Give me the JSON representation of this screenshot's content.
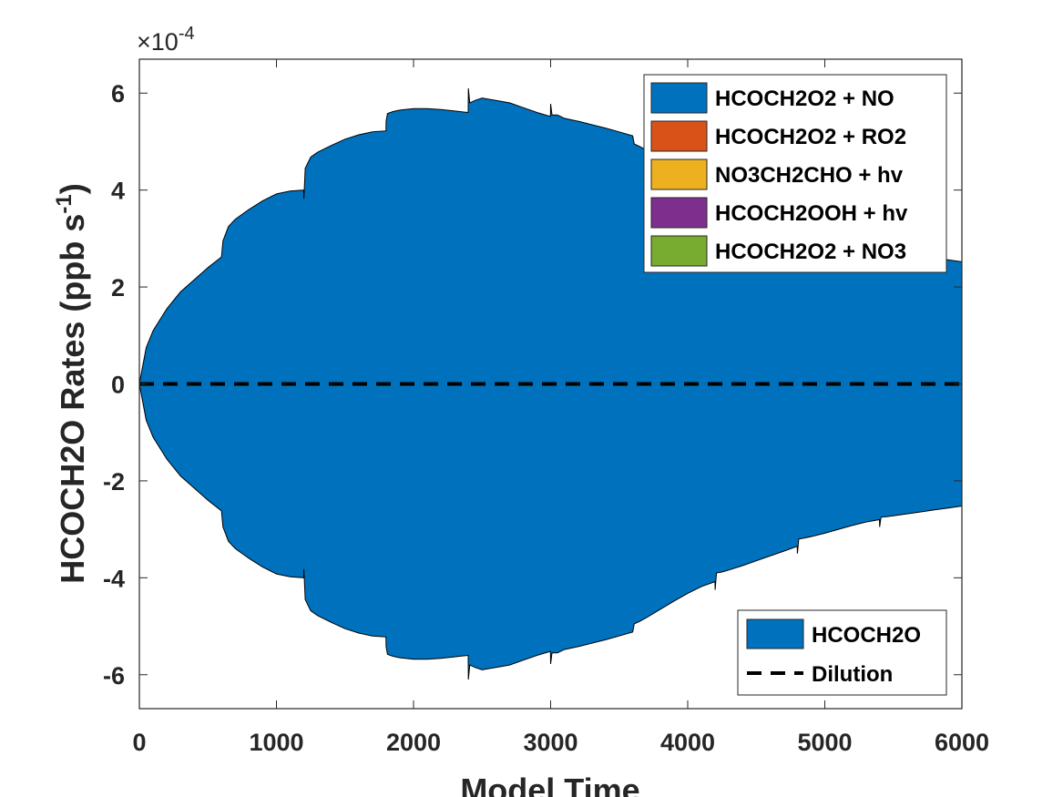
{
  "chart_data": {
    "type": "area",
    "xlabel": "Model Time",
    "ylabel_main": "HCOCH2O Rates (ppb s",
    "ylabel_sup": "-1",
    "ylabel_close": ")",
    "exponent_prefix": "×10",
    "exponent_power": "-4",
    "xlim": [
      0,
      6000
    ],
    "ylim": [
      -6.7,
      6.7
    ],
    "y_scale_factor": 0.0001,
    "x_ticks": [
      0,
      1000,
      2000,
      3000,
      4000,
      5000,
      6000
    ],
    "x_tick_labels": [
      "0",
      "1000",
      "2000",
      "3000",
      "4000",
      "5000",
      "6000"
    ],
    "y_ticks": [
      -6,
      -4,
      -2,
      0,
      2,
      4,
      6
    ],
    "y_tick_labels": [
      "-6",
      "-4",
      "-2",
      "0",
      "2",
      "4",
      "6"
    ],
    "series": [
      {
        "name": "HCOCH2O2 + NO",
        "color": "#0072BD",
        "x": [
          0,
          50,
          100,
          200,
          300,
          400,
          500,
          599,
          600,
          610,
          650,
          700,
          800,
          900,
          1000,
          1100,
          1199,
          1200,
          1210,
          1250,
          1300,
          1400,
          1500,
          1600,
          1700,
          1799,
          1800,
          1810,
          1850,
          1900,
          2000,
          2100,
          2200,
          2300,
          2399,
          2400,
          2410,
          2450,
          2500,
          2600,
          2700,
          2800,
          2900,
          2999,
          3000,
          3010,
          3050,
          3100,
          3200,
          3300,
          3400,
          3500,
          3599,
          3600,
          3610,
          3650,
          3700,
          3800,
          3900,
          4000,
          4100,
          4199,
          4200,
          4210,
          4250,
          4300,
          4400,
          4500,
          4600,
          4700,
          4799,
          4800,
          4810,
          4850,
          4900,
          5000,
          5100,
          5200,
          5300,
          5399,
          5400,
          5410,
          5450,
          5500,
          5600,
          5700,
          5800,
          5900,
          6000
        ],
        "values": [
          0,
          0.75,
          1.1,
          1.55,
          1.9,
          2.15,
          2.4,
          2.62,
          2.65,
          2.95,
          3.25,
          3.4,
          3.6,
          3.78,
          3.92,
          3.98,
          4.0,
          3.82,
          4.45,
          4.68,
          4.78,
          4.92,
          5.05,
          5.14,
          5.2,
          5.22,
          5.42,
          5.58,
          5.62,
          5.65,
          5.68,
          5.68,
          5.66,
          5.63,
          5.6,
          6.1,
          5.8,
          5.85,
          5.9,
          5.85,
          5.8,
          5.7,
          5.6,
          5.52,
          5.78,
          5.55,
          5.55,
          5.48,
          5.42,
          5.35,
          5.28,
          5.2,
          5.12,
          5.1,
          4.95,
          4.9,
          4.82,
          4.65,
          4.48,
          4.32,
          4.18,
          4.08,
          4.25,
          3.9,
          3.88,
          3.84,
          3.75,
          3.65,
          3.55,
          3.45,
          3.35,
          3.5,
          3.2,
          3.18,
          3.15,
          3.08,
          3.0,
          2.92,
          2.85,
          2.8,
          2.95,
          2.75,
          2.74,
          2.72,
          2.68,
          2.64,
          2.6,
          2.56,
          2.52
        ]
      },
      {
        "name": "HCOCH2O2 + RO2",
        "color": "#D95319",
        "values": []
      },
      {
        "name": "NO3CH2CHO + hv",
        "color": "#EDB120",
        "values": []
      },
      {
        "name": "HCOCH2OOH + hv",
        "color": "#7E2F8E",
        "values": []
      },
      {
        "name": "HCOCH2O2 + NO3",
        "color": "#77AC30",
        "values": []
      }
    ],
    "loss_series": [
      {
        "name": "HCOCH2O",
        "color": "#0072BD",
        "mirror_of": "HCOCH2O2 + NO"
      },
      {
        "name": "Dilution",
        "color": "#000000",
        "style": "dashed",
        "values": [
          0,
          0
        ]
      }
    ],
    "legend_top_location": "top-right",
    "legend_bottom_location": "bottom-right"
  }
}
